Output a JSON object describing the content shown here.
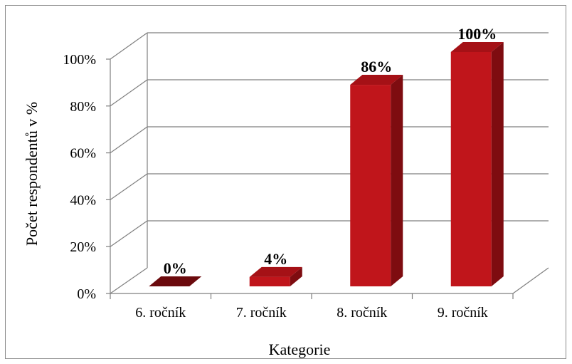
{
  "chart_data": {
    "type": "bar",
    "categories": [
      "6. ročník",
      "7. ročník",
      "8. ročník",
      "9. ročník"
    ],
    "values": [
      0,
      4,
      86,
      100
    ],
    "data_labels": [
      "0%",
      "4%",
      "86%",
      "100%"
    ],
    "y_ticks": [
      "0%",
      "20%",
      "40%",
      "60%",
      "80%",
      "100%"
    ],
    "xlabel": "Kategorie",
    "ylabel": "Počet respondentů v %",
    "ylim": [
      0,
      100
    ],
    "grid": true,
    "style": "3d-column",
    "colors": {
      "bar_front": "#c0151b",
      "bar_side": "#7e0c10",
      "bar_top": "#a51116",
      "zero_bar": "#6b0a0d",
      "grid": "#7f7f7f"
    }
  }
}
